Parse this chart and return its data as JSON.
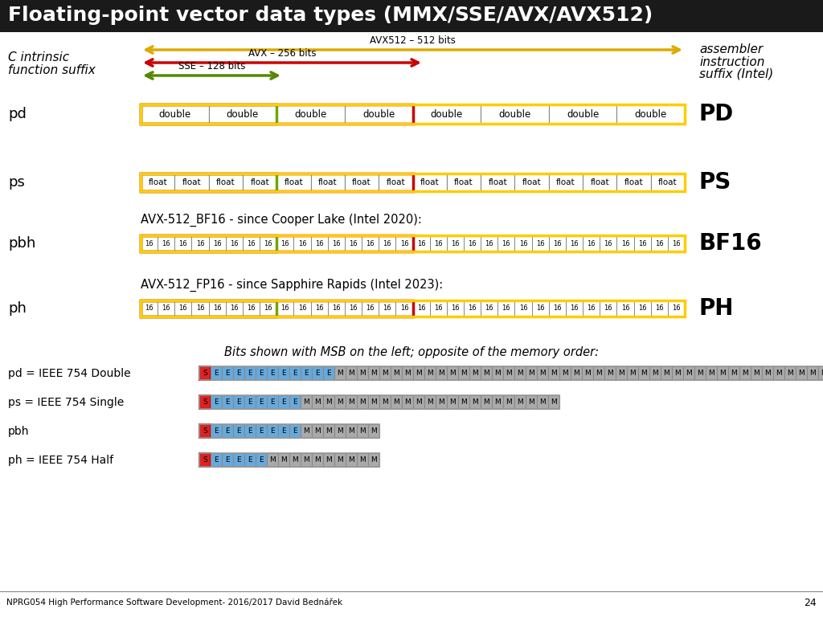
{
  "title": "Floating-point vector data types (MMX/SSE/AVX/AVX512)",
  "title_bg": "#1a1a1a",
  "title_color": "#ffffff",
  "bg_color": "#ffffff",
  "left_label1": "C intrinsic",
  "left_label2": "function suffix",
  "right_label1": "assembler",
  "right_label2": "instruction",
  "right_label3": "suffix (Intel)",
  "arrow_sse_label": "SSE – 128 bits",
  "arrow_avx_label": "AVX – 256 bits",
  "arrow_avx512_label": "AVX512 – 512 bits",
  "color_green": "#6aaa00",
  "color_red": "#cc0000",
  "color_yellow": "#ffcc00",
  "color_gray": "#aaaaaa",
  "color_light_gray": "#bbbbbb",
  "color_white": "#ffffff",
  "color_blue": "#55aadd",
  "color_s_fill": "#dd2222",
  "color_e_fill": "#66aadd",
  "color_m_fill": "#aaaaaa",
  "footer_text": "NPRG054 High Performance Software Development- 2016/2017 David Bednářek",
  "footer_page": "24"
}
